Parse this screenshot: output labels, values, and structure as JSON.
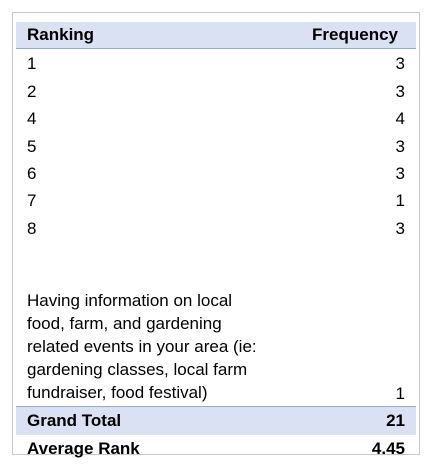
{
  "headers": {
    "ranking": "Ranking",
    "frequency": "Frequency"
  },
  "rows": [
    {
      "ranking": "1",
      "frequency": "3"
    },
    {
      "ranking": "2",
      "frequency": "3"
    },
    {
      "ranking": "4",
      "frequency": "4"
    },
    {
      "ranking": "5",
      "frequency": "3"
    },
    {
      "ranking": "6",
      "frequency": "3"
    },
    {
      "ranking": "7",
      "frequency": "1"
    },
    {
      "ranking": "8",
      "frequency": "3"
    }
  ],
  "long_row": {
    "ranking": "Having information on local food, farm, and gardening related events in your area (ie: gardening classes, local farm fundraiser, food festival)",
    "frequency": "1"
  },
  "grand_total": {
    "label": "Grand Total",
    "value": "21"
  },
  "average_rank": {
    "label": "Average Rank",
    "value": "4.45"
  },
  "colors": {
    "header_fill": "#d9e1f2",
    "rule": "#8ea9db",
    "frame_border": "#c8c8c8"
  }
}
